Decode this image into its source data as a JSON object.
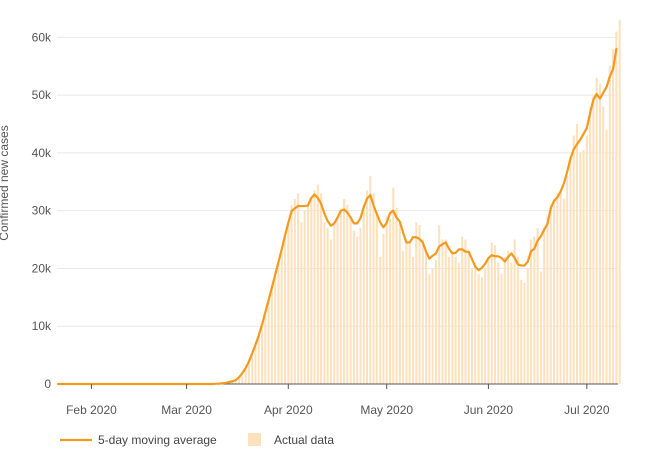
{
  "chart_data": {
    "type": "bar",
    "title": "",
    "ylabel": "Confirmed new cases",
    "xlabel": "",
    "ylim": [
      0,
      63000
    ],
    "grid": "horizontal",
    "legend_position": "bottom-left",
    "y_ticks": [
      0,
      10000,
      20000,
      30000,
      40000,
      50000,
      60000
    ],
    "y_tick_labels": [
      "0",
      "10k",
      "20k",
      "30k",
      "40k",
      "50k",
      "60k"
    ],
    "x_ticks": [
      {
        "date": "2020-02-01",
        "label": "Feb 2020"
      },
      {
        "date": "2020-03-01",
        "label": "Mar 2020"
      },
      {
        "date": "2020-04-01",
        "label": "Apr 2020"
      },
      {
        "date": "2020-05-01",
        "label": "May 2020"
      },
      {
        "date": "2020-06-01",
        "label": "Jun 2020"
      },
      {
        "date": "2020-07-01",
        "label": "Jul 2020"
      }
    ],
    "series": [
      {
        "name": "5-day moving average",
        "kind": "line",
        "color": "#f29a1f"
      },
      {
        "name": "Actual data",
        "kind": "bar",
        "color": "#fde0bc"
      }
    ],
    "dates": [
      "2020-01-22",
      "2020-01-23",
      "2020-01-24",
      "2020-01-25",
      "2020-01-26",
      "2020-01-27",
      "2020-01-28",
      "2020-01-29",
      "2020-01-30",
      "2020-01-31",
      "2020-02-01",
      "2020-02-02",
      "2020-02-03",
      "2020-02-04",
      "2020-02-05",
      "2020-02-06",
      "2020-02-07",
      "2020-02-08",
      "2020-02-09",
      "2020-02-10",
      "2020-02-11",
      "2020-02-12",
      "2020-02-13",
      "2020-02-14",
      "2020-02-15",
      "2020-02-16",
      "2020-02-17",
      "2020-02-18",
      "2020-02-19",
      "2020-02-20",
      "2020-02-21",
      "2020-02-22",
      "2020-02-23",
      "2020-02-24",
      "2020-02-25",
      "2020-02-26",
      "2020-02-27",
      "2020-02-28",
      "2020-02-29",
      "2020-03-01",
      "2020-03-02",
      "2020-03-03",
      "2020-03-04",
      "2020-03-05",
      "2020-03-06",
      "2020-03-07",
      "2020-03-08",
      "2020-03-09",
      "2020-03-10",
      "2020-03-11",
      "2020-03-12",
      "2020-03-13",
      "2020-03-14",
      "2020-03-15",
      "2020-03-16",
      "2020-03-17",
      "2020-03-18",
      "2020-03-19",
      "2020-03-20",
      "2020-03-21",
      "2020-03-22",
      "2020-03-23",
      "2020-03-24",
      "2020-03-25",
      "2020-03-26",
      "2020-03-27",
      "2020-03-28",
      "2020-03-29",
      "2020-03-30",
      "2020-03-31",
      "2020-04-01",
      "2020-04-02",
      "2020-04-03",
      "2020-04-04",
      "2020-04-05",
      "2020-04-06",
      "2020-04-07",
      "2020-04-08",
      "2020-04-09",
      "2020-04-10",
      "2020-04-11",
      "2020-04-12",
      "2020-04-13",
      "2020-04-14",
      "2020-04-15",
      "2020-04-16",
      "2020-04-17",
      "2020-04-18",
      "2020-04-19",
      "2020-04-20",
      "2020-04-21",
      "2020-04-22",
      "2020-04-23",
      "2020-04-24",
      "2020-04-25",
      "2020-04-26",
      "2020-04-27",
      "2020-04-28",
      "2020-04-29",
      "2020-04-30",
      "2020-05-01",
      "2020-05-02",
      "2020-05-03",
      "2020-05-04",
      "2020-05-05",
      "2020-05-06",
      "2020-05-07",
      "2020-05-08",
      "2020-05-09",
      "2020-05-10",
      "2020-05-11",
      "2020-05-12",
      "2020-05-13",
      "2020-05-14",
      "2020-05-15",
      "2020-05-16",
      "2020-05-17",
      "2020-05-18",
      "2020-05-19",
      "2020-05-20",
      "2020-05-21",
      "2020-05-22",
      "2020-05-23",
      "2020-05-24",
      "2020-05-25",
      "2020-05-26",
      "2020-05-27",
      "2020-05-28",
      "2020-05-29",
      "2020-05-30",
      "2020-05-31",
      "2020-06-01",
      "2020-06-02",
      "2020-06-03",
      "2020-06-04",
      "2020-06-05",
      "2020-06-06",
      "2020-06-07",
      "2020-06-08",
      "2020-06-09",
      "2020-06-10",
      "2020-06-11",
      "2020-06-12",
      "2020-06-13",
      "2020-06-14",
      "2020-06-15",
      "2020-06-16",
      "2020-06-17",
      "2020-06-18",
      "2020-06-19",
      "2020-06-20",
      "2020-06-21",
      "2020-06-22",
      "2020-06-23",
      "2020-06-24",
      "2020-06-25",
      "2020-06-26",
      "2020-06-27",
      "2020-06-28",
      "2020-06-29",
      "2020-06-30",
      "2020-07-01",
      "2020-07-02",
      "2020-07-03",
      "2020-07-04",
      "2020-07-05",
      "2020-07-06",
      "2020-07-07",
      "2020-07-08",
      "2020-07-09",
      "2020-07-10"
    ],
    "actual": [
      0,
      0,
      0,
      0,
      0,
      0,
      0,
      0,
      0,
      0,
      0,
      0,
      0,
      0,
      0,
      0,
      0,
      0,
      0,
      0,
      0,
      0,
      0,
      0,
      0,
      0,
      0,
      0,
      0,
      0,
      0,
      0,
      0,
      0,
      0,
      0,
      0,
      0,
      0,
      0,
      0,
      0,
      0,
      0,
      0,
      0,
      0,
      0,
      0,
      0,
      150,
      200,
      280,
      400,
      600,
      900,
      1300,
      2600,
      4000,
      5000,
      6500,
      8500,
      10000,
      12000,
      14500,
      17000,
      19000,
      21000,
      23000,
      25500,
      28000,
      31000,
      32000,
      33000,
      28000,
      30000,
      31000,
      32000,
      33500,
      34500,
      33000,
      28000,
      27000,
      25000,
      28000,
      29000,
      30000,
      32000,
      31000,
      29000,
      26500,
      25500,
      27000,
      31000,
      33500,
      36000,
      33000,
      30000,
      22000,
      26000,
      29000,
      28500,
      34000,
      30500,
      28000,
      23000,
      25000,
      24500,
      22000,
      28000,
      27500,
      25000,
      23000,
      19000,
      20000,
      21500,
      27500,
      25000,
      25000,
      22000,
      23000,
      22000,
      21000,
      25500,
      25000,
      23000,
      20000,
      21000,
      19000,
      18500,
      20000,
      22000,
      24500,
      24000,
      21000,
      19000,
      22000,
      23000,
      21000,
      25000,
      22000,
      18000,
      17500,
      20000,
      25000,
      25500,
      27000,
      19500,
      27000,
      29000,
      31000,
      32000,
      33000,
      33500,
      32000,
      36000,
      39000,
      43000,
      45000,
      40000,
      40500,
      43000,
      48000,
      50000,
      53000,
      52000,
      48000,
      44000,
      55000,
      58000,
      61000,
      63000
    ]
  },
  "legend": {
    "line_label": "5-day moving average",
    "bar_label": "Actual data"
  },
  "colors": {
    "line": "#f29a1f",
    "bar": "#fde0bc",
    "grid": "#e8e8e8",
    "baseline": "#555555"
  }
}
